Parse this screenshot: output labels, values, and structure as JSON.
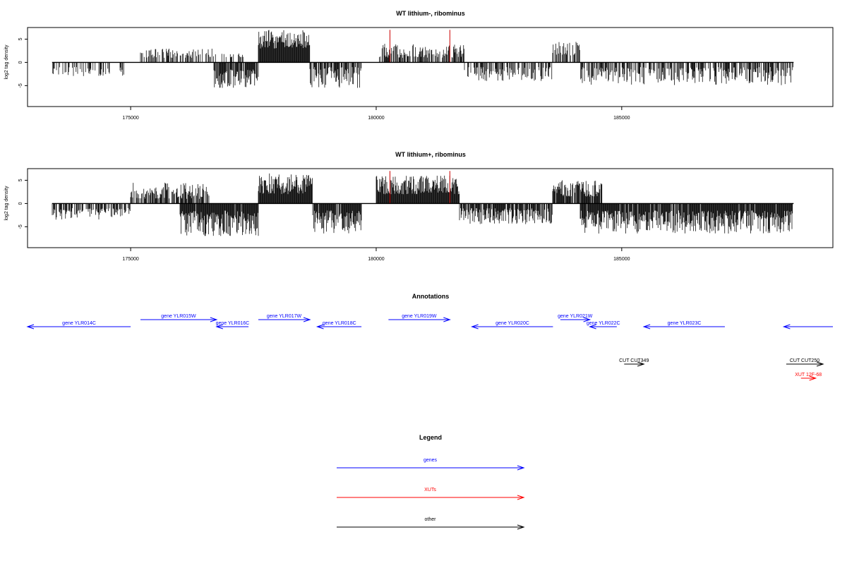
{
  "chart_data": [
    {
      "type": "bar",
      "title": "WT lithium-, ribominus",
      "xlabel": "",
      "ylabel": "log2 tag density",
      "xlim": [
        172900,
        189300
      ],
      "ylim": [
        -9.5,
        7.5
      ],
      "x_ticks": [
        175000,
        180000,
        185000
      ],
      "y_ticks": [
        -5,
        0,
        5
      ],
      "data_range": [
        173400,
        188500
      ],
      "segments": [
        {
          "from": 173400,
          "to": 175000,
          "sign": -1,
          "min": 1,
          "max": 3,
          "density": 0.35
        },
        {
          "from": 175000,
          "to": 175200,
          "sign": 0,
          "min": 0,
          "max": 0,
          "density": 0
        },
        {
          "from": 175200,
          "to": 176700,
          "sign": 1,
          "min": 1,
          "max": 3,
          "density": 0.4
        },
        {
          "from": 176700,
          "to": 177300,
          "sign": 1,
          "min": 1,
          "max": 2,
          "density": 0.25
        },
        {
          "from": 176700,
          "to": 177600,
          "sign": -1,
          "min": 1.5,
          "max": 5.5,
          "density": 0.85
        },
        {
          "from": 177600,
          "to": 178650,
          "sign": 1,
          "min": 3,
          "max": 7,
          "density": 1
        },
        {
          "from": 178650,
          "to": 179700,
          "sign": -1,
          "min": 1,
          "max": 5.5,
          "density": 0.7
        },
        {
          "from": 180050,
          "to": 181800,
          "sign": 1,
          "min": 1,
          "max": 4,
          "density": 0.55
        },
        {
          "from": 181800,
          "to": 183600,
          "sign": -1,
          "min": 1,
          "max": 4,
          "density": 0.5
        },
        {
          "from": 183600,
          "to": 184150,
          "sign": 1,
          "min": 1.5,
          "max": 4.5,
          "density": 0.55
        },
        {
          "from": 184150,
          "to": 188500,
          "sign": -1,
          "min": 1,
          "max": 5,
          "density": 0.6
        }
      ],
      "highlights": [
        {
          "x": 180280,
          "value": 7.0,
          "color": "#cc0000"
        },
        {
          "x": 181500,
          "value": 7.0,
          "color": "#cc0000"
        }
      ]
    },
    {
      "type": "bar",
      "title": "WT lithium+, ribominus",
      "xlabel": "",
      "ylabel": "log2 tag density",
      "xlim": [
        172900,
        189300
      ],
      "ylim": [
        -9.5,
        7.5
      ],
      "x_ticks": [
        175000,
        180000,
        185000
      ],
      "y_ticks": [
        -5,
        0,
        5
      ],
      "data_range": [
        173400,
        188500
      ],
      "segments": [
        {
          "from": 173400,
          "to": 175000,
          "sign": -1,
          "min": 1,
          "max": 3.5,
          "density": 0.55
        },
        {
          "from": 175000,
          "to": 176600,
          "sign": 1,
          "min": 1,
          "max": 4.5,
          "density": 0.65
        },
        {
          "from": 176000,
          "to": 177600,
          "sign": -1,
          "min": 1.5,
          "max": 7,
          "density": 0.95
        },
        {
          "from": 177600,
          "to": 178700,
          "sign": 1,
          "min": 2,
          "max": 6.5,
          "density": 1
        },
        {
          "from": 178700,
          "to": 179700,
          "sign": -1,
          "min": 1.5,
          "max": 6.5,
          "density": 0.9
        },
        {
          "from": 180000,
          "to": 181700,
          "sign": 1,
          "min": 2,
          "max": 6,
          "density": 1
        },
        {
          "from": 181700,
          "to": 183600,
          "sign": -1,
          "min": 1,
          "max": 4.5,
          "density": 0.75
        },
        {
          "from": 183600,
          "to": 184600,
          "sign": 1,
          "min": 1.5,
          "max": 5,
          "density": 0.9
        },
        {
          "from": 184150,
          "to": 188500,
          "sign": -1,
          "min": 1.5,
          "max": 6.5,
          "density": 0.95
        }
      ],
      "highlights": [
        {
          "x": 180280,
          "value": 7.0,
          "color": "#cc0000"
        },
        {
          "x": 181500,
          "value": 7.0,
          "color": "#cc0000"
        }
      ]
    }
  ],
  "annotations": {
    "title": "Annotations",
    "features": [
      {
        "label": "gene YLR014C",
        "x_from": 175000,
        "x_to": 172900,
        "row": "lower",
        "color": "#0000ff",
        "strand": "-"
      },
      {
        "label": "gene YLR015W",
        "x_from": 175200,
        "x_to": 176750,
        "row": "upper",
        "color": "#0000ff",
        "strand": "+"
      },
      {
        "label": "gene YLR016C",
        "x_from": 177400,
        "x_to": 176750,
        "row": "lower",
        "color": "#0000ff",
        "strand": "-"
      },
      {
        "label": "gene YLR017W",
        "x_from": 177600,
        "x_to": 178650,
        "row": "upper",
        "color": "#0000ff",
        "strand": "+"
      },
      {
        "label": "gene YLR018C",
        "x_from": 179700,
        "x_to": 178800,
        "row": "lower",
        "color": "#0000ff",
        "strand": "-"
      },
      {
        "label": "gene YLR019W",
        "x_from": 180250,
        "x_to": 181500,
        "row": "upper",
        "color": "#0000ff",
        "strand": "+"
      },
      {
        "label": "gene YLR020C",
        "x_from": 183600,
        "x_to": 181950,
        "row": "lower",
        "color": "#0000ff",
        "strand": "-"
      },
      {
        "label": "gene YLR021W",
        "x_from": 183750,
        "x_to": 184350,
        "row": "upper",
        "color": "#0000ff",
        "strand": "+"
      },
      {
        "label": "gene YLR022C",
        "x_from": 184900,
        "x_to": 184350,
        "row": "lower",
        "color": "#0000ff",
        "strand": "-"
      },
      {
        "label": "gene YLR023C",
        "x_from": 187100,
        "x_to": 185450,
        "row": "lower",
        "color": "#0000ff",
        "strand": "-"
      },
      {
        "label": "",
        "x_from": 189300,
        "x_to": 188300,
        "row": "lower",
        "color": "#0000ff",
        "strand": "-"
      },
      {
        "label": "CUT CUT349",
        "x_from": 185050,
        "x_to": 185450,
        "row": "cut",
        "color": "#000000",
        "strand": "+"
      },
      {
        "label": "CUT CUT250",
        "x_from": 188350,
        "x_to": 189100,
        "row": "cut",
        "color": "#000000",
        "strand": "+"
      },
      {
        "label": "XUT 12F-68",
        "x_from": 188650,
        "x_to": 188950,
        "row": "xut",
        "color": "#ff0000",
        "strand": "+"
      }
    ]
  },
  "legend": {
    "title": "Legend",
    "items": [
      {
        "label": "genes",
        "color": "#0000ff"
      },
      {
        "label": "XUTs",
        "color": "#ff0000"
      },
      {
        "label": "other",
        "color": "#000000"
      }
    ]
  }
}
